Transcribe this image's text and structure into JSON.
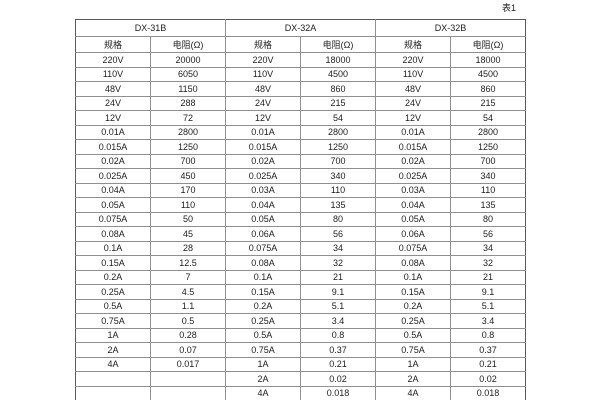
{
  "caption": "表1",
  "table": {
    "groups": [
      {
        "name": "DX-31B",
        "spec_header": "规格",
        "resistance_header": "电阻(Ω)"
      },
      {
        "name": "DX-32A",
        "spec_header": "规格",
        "resistance_header": "电阻(Ω)"
      },
      {
        "name": "DX-32B",
        "spec_header": "规格",
        "resistance_header": "电阻(Ω)"
      }
    ],
    "rows": [
      [
        "220V",
        "20000",
        "220V",
        "18000",
        "220V",
        "18000"
      ],
      [
        "110V",
        "6050",
        "110V",
        "4500",
        "110V",
        "4500"
      ],
      [
        "48V",
        "1150",
        "48V",
        "860",
        "48V",
        "860"
      ],
      [
        "24V",
        "288",
        "24V",
        "215",
        "24V",
        "215"
      ],
      [
        "12V",
        "72",
        "12V",
        "54",
        "12V",
        "54"
      ],
      [
        "0.01A",
        "2800",
        "0.01A",
        "2800",
        "0.01A",
        "2800"
      ],
      [
        "0.015A",
        "1250",
        "0.015A",
        "1250",
        "0.015A",
        "1250"
      ],
      [
        "0.02A",
        "700",
        "0.02A",
        "700",
        "0.02A",
        "700"
      ],
      [
        "0.025A",
        "450",
        "0.025A",
        "340",
        "0.025A",
        "340"
      ],
      [
        "0.04A",
        "170",
        "0.03A",
        "110",
        "0.03A",
        "110"
      ],
      [
        "0.05A",
        "110",
        "0.04A",
        "135",
        "0.04A",
        "135"
      ],
      [
        "0.075A",
        "50",
        "0.05A",
        "80",
        "0.05A",
        "80"
      ],
      [
        "0.08A",
        "45",
        "0.06A",
        "56",
        "0.06A",
        "56"
      ],
      [
        "0.1A",
        "28",
        "0.075A",
        "34",
        "0.075A",
        "34"
      ],
      [
        "0.15A",
        "12.5",
        "0.08A",
        "32",
        "0.08A",
        "32"
      ],
      [
        "0.2A",
        "7",
        "0.1A",
        "21",
        "0.1A",
        "21"
      ],
      [
        "0.25A",
        "4.5",
        "0.15A",
        "9.1",
        "0.15A",
        "9.1"
      ],
      [
        "0.5A",
        "1.1",
        "0.2A",
        "5.1",
        "0.2A",
        "5.1"
      ],
      [
        "0.75A",
        "0.5",
        "0.25A",
        "3.4",
        "0.25A",
        "3.4"
      ],
      [
        "1A",
        "0.28",
        "0.5A",
        "0.8",
        "0.5A",
        "0.8"
      ],
      [
        "2A",
        "0.07",
        "0.75A",
        "0.37",
        "0.75A",
        "0.37"
      ],
      [
        "4A",
        "0.017",
        "1A",
        "0.21",
        "1A",
        "0.21"
      ],
      [
        "",
        "",
        "2A",
        "0.02",
        "2A",
        "0.02"
      ],
      [
        "",
        "",
        "4A",
        "0.018",
        "4A",
        "0.018"
      ]
    ]
  }
}
